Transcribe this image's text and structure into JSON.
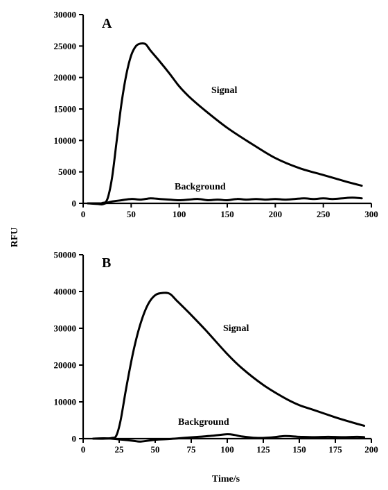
{
  "chart_data": [
    {
      "type": "line",
      "panel_letter": "A",
      "xlim": [
        0,
        300
      ],
      "ylim": [
        0,
        30000
      ],
      "x_ticks": [
        "0",
        "50",
        "100",
        "150",
        "200",
        "250",
        "300"
      ],
      "y_ticks": [
        "0",
        "5000",
        "10000",
        "15000",
        "20000",
        "25000",
        "30000"
      ],
      "grid": false,
      "series": [
        {
          "name": "Signal",
          "color": "#000000",
          "x": [
            5,
            15,
            20,
            25,
            30,
            35,
            40,
            45,
            50,
            55,
            60,
            65,
            70,
            80,
            90,
            100,
            110,
            125,
            150,
            175,
            200,
            225,
            250,
            275,
            290
          ],
          "y": [
            0,
            0,
            50,
            600,
            4000,
            10000,
            16000,
            20500,
            23500,
            25000,
            25400,
            25300,
            24300,
            22500,
            20600,
            18600,
            17000,
            15000,
            12000,
            9500,
            7200,
            5600,
            4500,
            3400,
            2800
          ]
        },
        {
          "name": "Background",
          "color": "#000000",
          "x": [
            5,
            15,
            20,
            25,
            30,
            40,
            50,
            60,
            70,
            80,
            90,
            100,
            110,
            120,
            130,
            140,
            150,
            160,
            170,
            180,
            190,
            200,
            210,
            220,
            230,
            240,
            250,
            260,
            270,
            280,
            290
          ],
          "y": [
            0,
            -100,
            -150,
            100,
            300,
            500,
            700,
            600,
            800,
            700,
            600,
            500,
            600,
            700,
            500,
            600,
            500,
            700,
            600,
            700,
            600,
            700,
            600,
            700,
            800,
            700,
            800,
            700,
            800,
            900,
            800
          ]
        }
      ]
    },
    {
      "type": "line",
      "panel_letter": "B",
      "xlim": [
        0,
        200
      ],
      "ylim": [
        0,
        50000
      ],
      "x_ticks": [
        "0",
        "25",
        "50",
        "75",
        "100",
        "125",
        "150",
        "175",
        "200"
      ],
      "y_ticks": [
        "0",
        "10000",
        "20000",
        "30000",
        "40000",
        "50000"
      ],
      "grid": false,
      "series": [
        {
          "name": "Signal",
          "color": "#000000",
          "x": [
            7,
            15,
            20,
            23,
            26,
            30,
            35,
            40,
            45,
            50,
            55,
            60,
            65,
            75,
            85,
            100,
            110,
            125,
            140,
            150,
            160,
            175,
            185,
            195
          ],
          "y": [
            0,
            0,
            200,
            800,
            5000,
            14000,
            24000,
            31500,
            36500,
            39000,
            39600,
            39400,
            37500,
            33600,
            29500,
            23000,
            19200,
            14600,
            11000,
            9100,
            7800,
            5800,
            4600,
            3500
          ]
        },
        {
          "name": "Background",
          "color": "#000000",
          "x": [
            7,
            15,
            25,
            35,
            40,
            50,
            60,
            70,
            80,
            90,
            100,
            105,
            110,
            120,
            130,
            140,
            150,
            160,
            170,
            180,
            190,
            195
          ],
          "y": [
            0,
            100,
            -200,
            -600,
            -800,
            -300,
            -100,
            200,
            500,
            800,
            1200,
            1000,
            600,
            200,
            300,
            700,
            500,
            400,
            500,
            400,
            500,
            400
          ]
        }
      ]
    }
  ],
  "labels": {
    "panel_a_letter": "A",
    "panel_b_letter": "B",
    "panel_a_signal": "Signal",
    "panel_a_background": "Background",
    "panel_b_signal": "Signal",
    "panel_b_background": "Background",
    "y_axis_title": "RFU",
    "x_axis_title": "Time/s"
  }
}
